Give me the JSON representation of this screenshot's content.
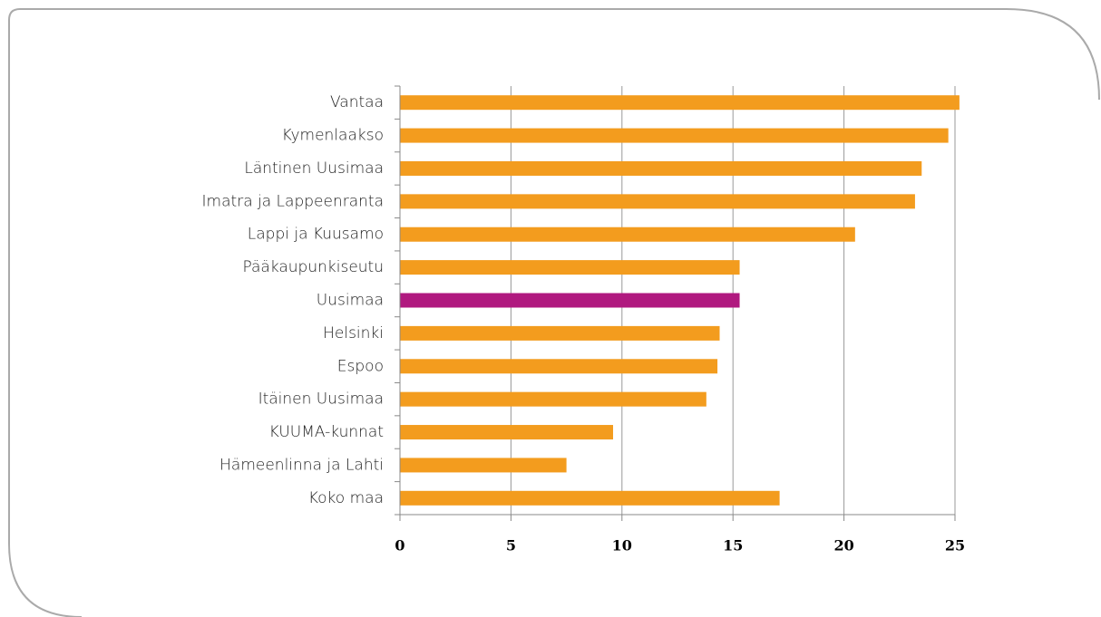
{
  "chart_data": {
    "type": "bar",
    "orientation": "horizontal",
    "categories": [
      "Vantaa",
      "Kymenlaakso",
      "Läntinen Uusimaa",
      "Imatra ja Lappeenranta",
      "Lappi ja Kuusamo",
      "Pääkaupunkiseutu",
      "Uusimaa",
      "Helsinki",
      "Espoo",
      "Itäinen Uusimaa",
      "KUUMA-kunnat",
      "Hämeenlinna ja Lahti",
      "Koko maa"
    ],
    "values": [
      25.2,
      24.7,
      23.5,
      23.2,
      20.5,
      15.3,
      15.3,
      14.4,
      14.3,
      13.8,
      9.6,
      7.5,
      17.1
    ],
    "colors": [
      "#f39c1e",
      "#f39c1e",
      "#f39c1e",
      "#f39c1e",
      "#f39c1e",
      "#f39c1e",
      "#b0197f",
      "#f39c1e",
      "#f39c1e",
      "#f39c1e",
      "#f39c1e",
      "#f39c1e",
      "#f39c1e"
    ],
    "xlim": [
      0,
      25
    ],
    "xticks": [
      0,
      5,
      10,
      15,
      20,
      25
    ],
    "grid": true
  }
}
